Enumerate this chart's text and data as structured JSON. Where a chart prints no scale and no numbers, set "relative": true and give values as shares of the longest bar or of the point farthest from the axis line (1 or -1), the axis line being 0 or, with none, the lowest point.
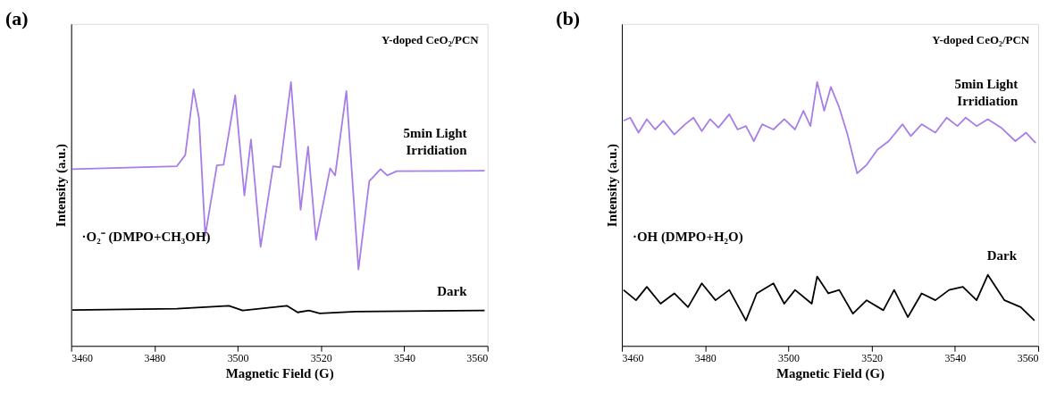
{
  "chart_data": [
    {
      "type": "line",
      "title": "(a)",
      "xlabel": "Magnetic Field (G)",
      "ylabel": "Intensity (a.u.)",
      "relative": true,
      "tick_labels": "x",
      "xlim": [
        3460,
        3560
      ],
      "xticks": [
        3460,
        3480,
        3500,
        3520,
        3540,
        3560
      ],
      "grid": false,
      "annotations": [
        "Y-doped CeO₂/PCN",
        "·O₂⁻ (DMPO+CH₃OH)"
      ],
      "series": [
        {
          "name": "5min Light Irridiation",
          "color": "#a77de8",
          "x": [
            3460.3,
            3485.4,
            3487.4,
            3489.4,
            3490.7,
            3492.2,
            3495.0,
            3496.6,
            3499.4,
            3501.6,
            3503.2,
            3505.5,
            3508.5,
            3510.2,
            3512.8,
            3515.1,
            3516.9,
            3518.8,
            3522.2,
            3523.4,
            3526.1,
            3529.0,
            3531.6,
            3534.3,
            3535.9,
            3538.2,
            3559.3
          ],
          "values": [
            0.67,
            0.681,
            0.723,
            0.972,
            0.863,
            0.418,
            0.684,
            0.687,
            0.95,
            0.57,
            0.782,
            0.375,
            0.681,
            0.677,
            1.0,
            0.516,
            0.755,
            0.402,
            0.673,
            0.646,
            0.966,
            0.29,
            0.624,
            0.67,
            0.646,
            0.662,
            0.664
          ]
        },
        {
          "name": "Dark",
          "color": "#000000",
          "x": [
            3460.3,
            3485.4,
            3497.9,
            3501.2,
            3511.8,
            3514.4,
            3517.1,
            3519.7,
            3528.3,
            3559.3
          ],
          "values": [
            0.136,
            0.141,
            0.152,
            0.134,
            0.152,
            0.127,
            0.134,
            0.123,
            0.13,
            0.134
          ]
        }
      ]
    },
    {
      "type": "line",
      "title": "(b)",
      "xlabel": "Magnetic Field (G)",
      "ylabel": "Intensity (a.u.)",
      "relative": true,
      "tick_labels": "x",
      "xlim": [
        3460,
        3560
      ],
      "xticks": [
        3460,
        3480,
        3500,
        3520,
        3540,
        3560
      ],
      "grid": false,
      "annotations": [
        "Y-doped CeO₂/PCN",
        "·OH (DMPO+H₂O)"
      ],
      "series": [
        {
          "name": "5min Light Irridiation",
          "color": "#a77de8",
          "x": [
            3460.4,
            3462.0,
            3464.0,
            3466.0,
            3468.0,
            3470.0,
            3472.6,
            3475.2,
            3477.2,
            3479.2,
            3481.2,
            3483.2,
            3485.8,
            3487.8,
            3489.8,
            3491.7,
            3493.7,
            3496.4,
            3499.0,
            3501.6,
            3503.6,
            3505.3,
            3506.9,
            3508.6,
            3510.2,
            3512.2,
            3514.2,
            3516.5,
            3518.8,
            3521.4,
            3524.1,
            3527.4,
            3529.4,
            3532.0,
            3535.3,
            3538.0,
            3540.6,
            3542.6,
            3545.2,
            3547.9,
            3551.1,
            3554.5,
            3557.1,
            3559.4
          ],
          "values": [
            0.853,
            0.865,
            0.808,
            0.859,
            0.82,
            0.853,
            0.801,
            0.84,
            0.865,
            0.814,
            0.859,
            0.827,
            0.878,
            0.82,
            0.833,
            0.776,
            0.84,
            0.82,
            0.859,
            0.82,
            0.891,
            0.833,
            1.0,
            0.891,
            0.981,
            0.904,
            0.801,
            0.654,
            0.686,
            0.744,
            0.776,
            0.84,
            0.795,
            0.84,
            0.808,
            0.865,
            0.833,
            0.865,
            0.833,
            0.859,
            0.827,
            0.776,
            0.808,
            0.769
          ]
        },
        {
          "name": "Dark",
          "color": "#000000",
          "x": [
            3460.4,
            3463.4,
            3466.0,
            3469.3,
            3472.6,
            3475.9,
            3479.2,
            3482.5,
            3485.8,
            3489.8,
            3492.4,
            3496.4,
            3499.0,
            3501.6,
            3505.6,
            3506.9,
            3509.6,
            3512.2,
            3515.5,
            3518.8,
            3522.8,
            3525.4,
            3528.7,
            3532.0,
            3535.3,
            3538.6,
            3541.9,
            3545.2,
            3547.9,
            3551.9,
            3555.8,
            3559.1
          ],
          "values": [
            0.212,
            0.173,
            0.224,
            0.16,
            0.199,
            0.147,
            0.237,
            0.173,
            0.212,
            0.096,
            0.199,
            0.237,
            0.16,
            0.212,
            0.16,
            0.263,
            0.199,
            0.212,
            0.122,
            0.173,
            0.135,
            0.212,
            0.109,
            0.199,
            0.173,
            0.212,
            0.224,
            0.173,
            0.269,
            0.173,
            0.147,
            0.096
          ]
        }
      ]
    }
  ]
}
